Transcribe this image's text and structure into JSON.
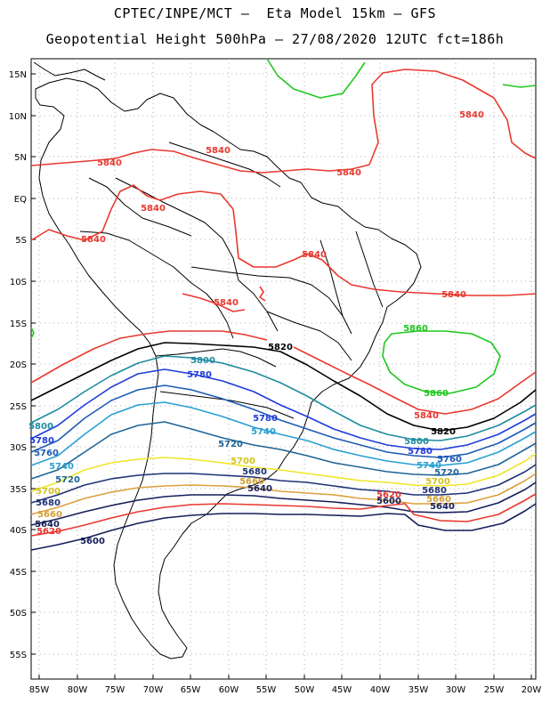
{
  "title_line1": "CPTEC/INPE/MCT –  Eta Model 15km – GFS",
  "title_line2": "Geopotential Height 500hPa – 27/08/2020 12UTC fct=186h",
  "lat_ticks": [
    "15N",
    "10N",
    "5N",
    "EQ",
    "5S",
    "10S",
    "15S",
    "20S",
    "25S",
    "30S",
    "35S",
    "40S",
    "45S",
    "50S",
    "55S"
  ],
  "lon_ticks": [
    "85W",
    "80W",
    "75W",
    "70W",
    "65W",
    "60W",
    "55W",
    "50W",
    "45W",
    "40W",
    "35W",
    "30W",
    "25W",
    "20W"
  ],
  "contour_labels": [
    {
      "text": "5840",
      "color": "#e8392f"
    },
    {
      "text": "5840",
      "color": "#e8392f"
    },
    {
      "text": "5840",
      "color": "#e8392f"
    },
    {
      "text": "5840",
      "color": "#e8392f"
    },
    {
      "text": "5840",
      "color": "#e8392f"
    },
    {
      "text": "5840",
      "color": "#e8392f"
    },
    {
      "text": "5840",
      "color": "#e8392f"
    },
    {
      "text": "5840",
      "color": "#e8392f"
    },
    {
      "text": "5840",
      "color": "#e8392f"
    },
    {
      "text": "5840",
      "color": "#e8392f"
    },
    {
      "text": "5860",
      "color": "#1ec81e"
    },
    {
      "text": "5860",
      "color": "#1ec81e"
    },
    {
      "text": "5820",
      "color": "#000000"
    },
    {
      "text": "5820",
      "color": "#000000"
    },
    {
      "text": "5800",
      "color": "#1e8ca0"
    },
    {
      "text": "5800",
      "color": "#1e8ca0"
    },
    {
      "text": "5780",
      "color": "#1e3cdc"
    },
    {
      "text": "5780",
      "color": "#1e3cdc"
    },
    {
      "text": "5780",
      "color": "#1e3cdc"
    },
    {
      "text": "5760",
      "color": "#1e5ab4"
    },
    {
      "text": "5760",
      "color": "#1e5ab4"
    },
    {
      "text": "5740",
      "color": "#28a0d2"
    },
    {
      "text": "5740",
      "color": "#28a0d2"
    },
    {
      "text": "5740",
      "color": "#28a0d2"
    },
    {
      "text": "5720",
      "color": "#1e6496"
    },
    {
      "text": "5720",
      "color": "#1e6496"
    },
    {
      "text": "5720",
      "color": "#1e6496"
    },
    {
      "text": "5700",
      "color": "#e6d21e"
    },
    {
      "text": "5700",
      "color": "#e6d21e"
    },
    {
      "text": "5700",
      "color": "#e6d21e"
    },
    {
      "text": "5680",
      "color": "#1e3278"
    },
    {
      "text": "5680",
      "color": "#1e3278"
    },
    {
      "text": "5680",
      "color": "#1e3278"
    },
    {
      "text": "5660",
      "color": "#d2a032"
    },
    {
      "text": "5660",
      "color": "#d2a032"
    },
    {
      "text": "5660",
      "color": "#d2a032"
    },
    {
      "text": "5640",
      "color": "#141e5a"
    },
    {
      "text": "5640",
      "color": "#141e5a"
    },
    {
      "text": "5640",
      "color": "#141e5a"
    },
    {
      "text": "5620",
      "color": "#e8392f"
    },
    {
      "text": "5620",
      "color": "#e8392f"
    },
    {
      "text": "5600",
      "color": "#141e5a"
    },
    {
      "text": "5600",
      "color": "#141e5a"
    },
    {
      "text": "5800",
      "color": "#1e8ca0"
    },
    {
      "text": "5780",
      "color": "#1e3cdc"
    }
  ],
  "colors": {
    "h5860": "#1ec81e",
    "h5840": "#e8392f",
    "h5820": "#000000",
    "h5800": "#1e8ca0",
    "h5780": "#1e3cdc",
    "h5760": "#1e5ab4",
    "h5740": "#28a0d2",
    "h5720": "#1e6496",
    "h5700": "#f0e628",
    "h5680": "#1e3278",
    "h5660": "#dca03c",
    "h5640": "#141e5a",
    "h5620": "#e8392f",
    "h5600": "#141e5a",
    "grid": "#9a9a9a",
    "coast": "#000000"
  }
}
